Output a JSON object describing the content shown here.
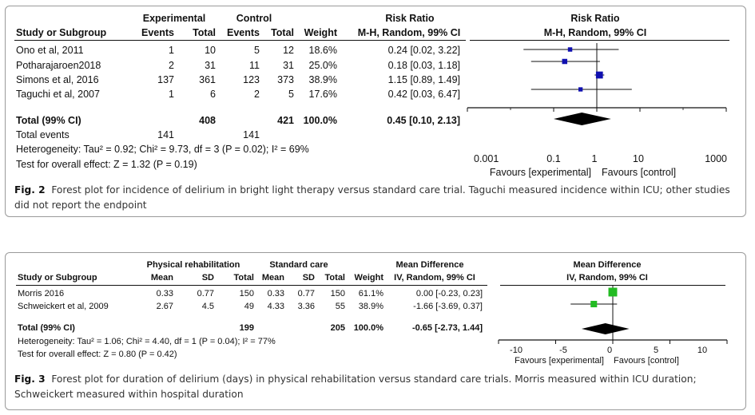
{
  "figures": [
    {
      "label": "Fig. 2",
      "caption": "Forest plot for incidence of delirium in bright light therapy versus standard care trial. Taguchi measured incidence within ICU; other studies did not report the endpoint",
      "headers": {
        "group1": "Experimental",
        "group2": "Control",
        "study": "Study or Subgroup",
        "g1_events": "Events",
        "g1_total": "Total",
        "g2_events": "Events",
        "g2_total": "Total",
        "weight": "Weight",
        "effect_title": "Risk Ratio",
        "effect_method": "M-H, Random, 99% CI",
        "plot_title": "Risk Ratio",
        "plot_method": "M-H, Random, 99% CI"
      },
      "rows": [
        {
          "study": "Ono et al, 2011",
          "e_events": "1",
          "e_total": "10",
          "c_events": "5",
          "c_total": "12",
          "weight": "18.6%",
          "ci": "0.24 [0.02, 3.22]"
        },
        {
          "study": "Potharajaroen2018",
          "e_events": "2",
          "e_total": "31",
          "c_events": "11",
          "c_total": "31",
          "weight": "25.0%",
          "ci": "0.18 [0.03, 1.18]"
        },
        {
          "study": "Simons et al, 2016",
          "e_events": "137",
          "e_total": "361",
          "c_events": "123",
          "c_total": "373",
          "weight": "38.9%",
          "ci": "1.15 [0.89, 1.49]"
        },
        {
          "study": "Taguchi et al, 2007",
          "e_events": "1",
          "e_total": "6",
          "c_events": "2",
          "c_total": "5",
          "weight": "17.6%",
          "ci": "0.42 [0.03, 6.47]"
        }
      ],
      "total": {
        "label": "Total (99% CI)",
        "e_total": "408",
        "c_total": "421",
        "weight": "100.0%",
        "ci": "0.45 [0.10, 2.13]"
      },
      "total_events": {
        "label": "Total events",
        "e_events": "141",
        "c_events": "141"
      },
      "heterogeneity": "Heterogeneity: Tau² = 0.92; Chi² = 9.73, df = 3 (P = 0.02); I² = 69%",
      "overall_effect": "Test for overall effect: Z = 1.32 (P = 0.19)",
      "axis": {
        "ticks": [
          "0.001",
          "0.1",
          "1",
          "10",
          "1000"
        ],
        "favours_left": "Favours [experimental]",
        "favours_right": "Favours [control]"
      }
    },
    {
      "label": "Fig. 3",
      "caption": "Forest plot for duration of delirium (days) in physical rehabilitation versus standard care trials. Morris measured within ICU duration; Schweickert measured within hospital duration",
      "headers": {
        "group1": "Physical rehabilitation",
        "group2": "Standard care",
        "study": "Study or Subgroup",
        "g1_mean": "Mean",
        "g1_sd": "SD",
        "g1_total": "Total",
        "g2_mean": "Mean",
        "g2_sd": "SD",
        "g2_total": "Total",
        "weight": "Weight",
        "effect_title": "Mean Difference",
        "effect_method": "IV, Random, 99% CI",
        "plot_title": "Mean Difference",
        "plot_method": "IV, Random, 99% CI"
      },
      "rows": [
        {
          "study": "Morris 2016",
          "e_mean": "0.33",
          "e_sd": "0.77",
          "e_total": "150",
          "c_mean": "0.33",
          "c_sd": "0.77",
          "c_total": "150",
          "weight": "61.1%",
          "ci": "0.00 [-0.23, 0.23]"
        },
        {
          "study": "Schweickert et al, 2009",
          "e_mean": "2.67",
          "e_sd": "4.5",
          "e_total": "49",
          "c_mean": "4.33",
          "c_sd": "3.36",
          "c_total": "55",
          "weight": "38.9%",
          "ci": "-1.66 [-3.69, 0.37]"
        }
      ],
      "total": {
        "label": "Total (99% CI)",
        "e_total": "199",
        "c_total": "205",
        "weight": "100.0%",
        "ci": "-0.65 [-2.73, 1.44]"
      },
      "heterogeneity": "Heterogeneity: Tau² = 1.06; Chi² = 4.40, df = 1 (P = 0.04); I² = 77%",
      "overall_effect": "Test for overall effect: Z = 0.80 (P = 0.42)",
      "axis": {
        "ticks": [
          "-10",
          "-5",
          "0",
          "5",
          "10"
        ],
        "favours_left": "Favours [experimental]",
        "favours_right": "Favours [control]"
      }
    }
  ],
  "chart_data": [
    {
      "type": "scatter",
      "subtype": "forest-plot",
      "x_scale": "log",
      "xlim": [
        0.001,
        1000
      ],
      "reference_line": 1,
      "marker_color": "#1010b0",
      "studies": [
        {
          "name": "Ono et al, 2011",
          "estimate": 0.24,
          "lower": 0.02,
          "upper": 3.22,
          "weight": 18.6
        },
        {
          "name": "Potharajaroen2018",
          "estimate": 0.18,
          "lower": 0.03,
          "upper": 1.18,
          "weight": 25.0
        },
        {
          "name": "Simons et al, 2016",
          "estimate": 1.15,
          "lower": 0.89,
          "upper": 1.49,
          "weight": 38.9
        },
        {
          "name": "Taguchi et al, 2007",
          "estimate": 0.42,
          "lower": 0.03,
          "upper": 6.47,
          "weight": 17.6
        }
      ],
      "pooled": {
        "estimate": 0.45,
        "lower": 0.1,
        "upper": 2.13
      }
    },
    {
      "type": "scatter",
      "subtype": "forest-plot",
      "x_scale": "linear",
      "xlim": [
        -10,
        10
      ],
      "reference_line": 0,
      "marker_color": "#22bb22",
      "studies": [
        {
          "name": "Morris 2016",
          "estimate": 0.0,
          "lower": -0.23,
          "upper": 0.23,
          "weight": 61.1
        },
        {
          "name": "Schweickert et al, 2009",
          "estimate": -1.66,
          "lower": -3.69,
          "upper": 0.37,
          "weight": 38.9
        }
      ],
      "pooled": {
        "estimate": -0.65,
        "lower": -2.73,
        "upper": 1.44
      }
    }
  ]
}
